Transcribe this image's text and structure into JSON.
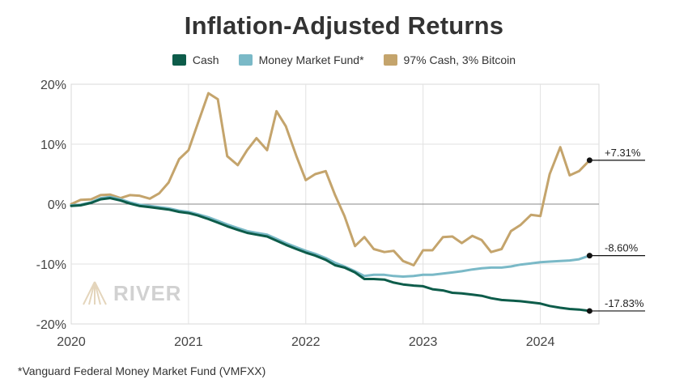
{
  "chart_data": {
    "type": "line",
    "title": "Inflation-Adjusted Returns",
    "xlabel": "",
    "ylabel": "",
    "x_ticks": [
      "2020",
      "2021",
      "2022",
      "2023",
      "2024"
    ],
    "y_ticks": [
      "20%",
      "10%",
      "0%",
      "-10%",
      "-20%"
    ],
    "ylim": [
      -20,
      20
    ],
    "xlim": [
      2020.0,
      2024.5
    ],
    "series": [
      {
        "name": "Cash",
        "color": "#0d5c4a",
        "end_label": "-17.83%",
        "x": [
          2020.0,
          2020.08,
          2020.17,
          2020.25,
          2020.33,
          2020.42,
          2020.5,
          2020.58,
          2020.67,
          2020.75,
          2020.83,
          2020.92,
          2021.0,
          2021.08,
          2021.17,
          2021.25,
          2021.33,
          2021.42,
          2021.5,
          2021.58,
          2021.67,
          2021.75,
          2021.83,
          2021.92,
          2022.0,
          2022.08,
          2022.17,
          2022.25,
          2022.33,
          2022.42,
          2022.5,
          2022.58,
          2022.67,
          2022.75,
          2022.83,
          2022.92,
          2023.0,
          2023.08,
          2023.17,
          2023.25,
          2023.33,
          2023.42,
          2023.5,
          2023.58,
          2023.67,
          2023.75,
          2023.83,
          2023.92,
          2024.0,
          2024.08,
          2024.17,
          2024.25,
          2024.33,
          2024.42
        ],
        "values": [
          -0.3,
          -0.2,
          0.2,
          0.8,
          1.0,
          0.6,
          0.1,
          -0.3,
          -0.5,
          -0.7,
          -0.9,
          -1.3,
          -1.5,
          -1.9,
          -2.5,
          -3.1,
          -3.7,
          -4.3,
          -4.8,
          -5.1,
          -5.4,
          -6.1,
          -6.8,
          -7.5,
          -8.1,
          -8.6,
          -9.3,
          -10.2,
          -10.6,
          -11.4,
          -12.5,
          -12.5,
          -12.6,
          -13.1,
          -13.4,
          -13.6,
          -13.7,
          -14.2,
          -14.4,
          -14.8,
          -14.9,
          -15.1,
          -15.3,
          -15.7,
          -16.0,
          -16.1,
          -16.2,
          -16.4,
          -16.6,
          -17.0,
          -17.3,
          -17.5,
          -17.6,
          -17.83
        ]
      },
      {
        "name": "Money Market Fund*",
        "color": "#7ab9c7",
        "end_label": "-8.60%",
        "x": [
          2020.0,
          2020.08,
          2020.17,
          2020.25,
          2020.33,
          2020.42,
          2020.5,
          2020.58,
          2020.67,
          2020.75,
          2020.83,
          2020.92,
          2021.0,
          2021.08,
          2021.17,
          2021.25,
          2021.33,
          2021.42,
          2021.5,
          2021.58,
          2021.67,
          2021.75,
          2021.83,
          2021.92,
          2022.0,
          2022.08,
          2022.17,
          2022.25,
          2022.33,
          2022.42,
          2022.5,
          2022.58,
          2022.67,
          2022.75,
          2022.83,
          2022.92,
          2023.0,
          2023.08,
          2023.17,
          2023.25,
          2023.33,
          2023.42,
          2023.5,
          2023.58,
          2023.67,
          2023.75,
          2023.83,
          2023.92,
          2024.0,
          2024.08,
          2024.17,
          2024.25,
          2024.33,
          2024.42
        ],
        "values": [
          -0.2,
          -0.1,
          0.3,
          1.0,
          1.2,
          0.8,
          0.3,
          -0.1,
          -0.3,
          -0.5,
          -0.7,
          -1.1,
          -1.3,
          -1.7,
          -2.2,
          -2.8,
          -3.4,
          -4.0,
          -4.5,
          -4.8,
          -5.1,
          -5.8,
          -6.5,
          -7.2,
          -7.8,
          -8.3,
          -9.0,
          -9.8,
          -10.4,
          -11.2,
          -12.0,
          -11.8,
          -11.8,
          -12.0,
          -12.1,
          -12.0,
          -11.8,
          -11.8,
          -11.6,
          -11.4,
          -11.2,
          -10.9,
          -10.7,
          -10.6,
          -10.6,
          -10.4,
          -10.1,
          -9.9,
          -9.7,
          -9.6,
          -9.5,
          -9.4,
          -9.2,
          -8.6
        ]
      },
      {
        "name": "97% Cash, 3% Bitcoin",
        "color": "#c4a46c",
        "end_label": "+7.31%",
        "x": [
          2020.0,
          2020.08,
          2020.17,
          2020.25,
          2020.33,
          2020.42,
          2020.5,
          2020.58,
          2020.67,
          2020.75,
          2020.83,
          2020.92,
          2021.0,
          2021.08,
          2021.17,
          2021.25,
          2021.33,
          2021.42,
          2021.5,
          2021.58,
          2021.67,
          2021.75,
          2021.83,
          2021.92,
          2022.0,
          2022.08,
          2022.17,
          2022.25,
          2022.33,
          2022.42,
          2022.5,
          2022.58,
          2022.67,
          2022.75,
          2022.83,
          2022.92,
          2023.0,
          2023.08,
          2023.17,
          2023.25,
          2023.33,
          2023.42,
          2023.5,
          2023.58,
          2023.67,
          2023.75,
          2023.83,
          2023.92,
          2024.0,
          2024.08,
          2024.17,
          2024.25,
          2024.33,
          2024.42
        ],
        "values": [
          0.0,
          0.7,
          0.8,
          1.5,
          1.6,
          1.0,
          1.5,
          1.4,
          0.9,
          1.8,
          3.6,
          7.5,
          9.0,
          13.5,
          18.5,
          17.5,
          8.0,
          6.5,
          9.0,
          11.0,
          9.0,
          15.5,
          13.0,
          8.0,
          4.0,
          5.0,
          5.5,
          1.5,
          -2.0,
          -7.0,
          -5.5,
          -7.5,
          -8.0,
          -7.8,
          -9.5,
          -10.2,
          -7.7,
          -7.7,
          -5.5,
          -5.4,
          -6.5,
          -5.3,
          -6.0,
          -8.0,
          -7.5,
          -4.5,
          -3.5,
          -1.8,
          -2.0,
          5.0,
          9.5,
          4.8,
          5.5,
          7.31
        ]
      }
    ]
  },
  "footnote": "*Vanguard Federal Money Market Fund (VMFXX)",
  "watermark": "RIVER"
}
